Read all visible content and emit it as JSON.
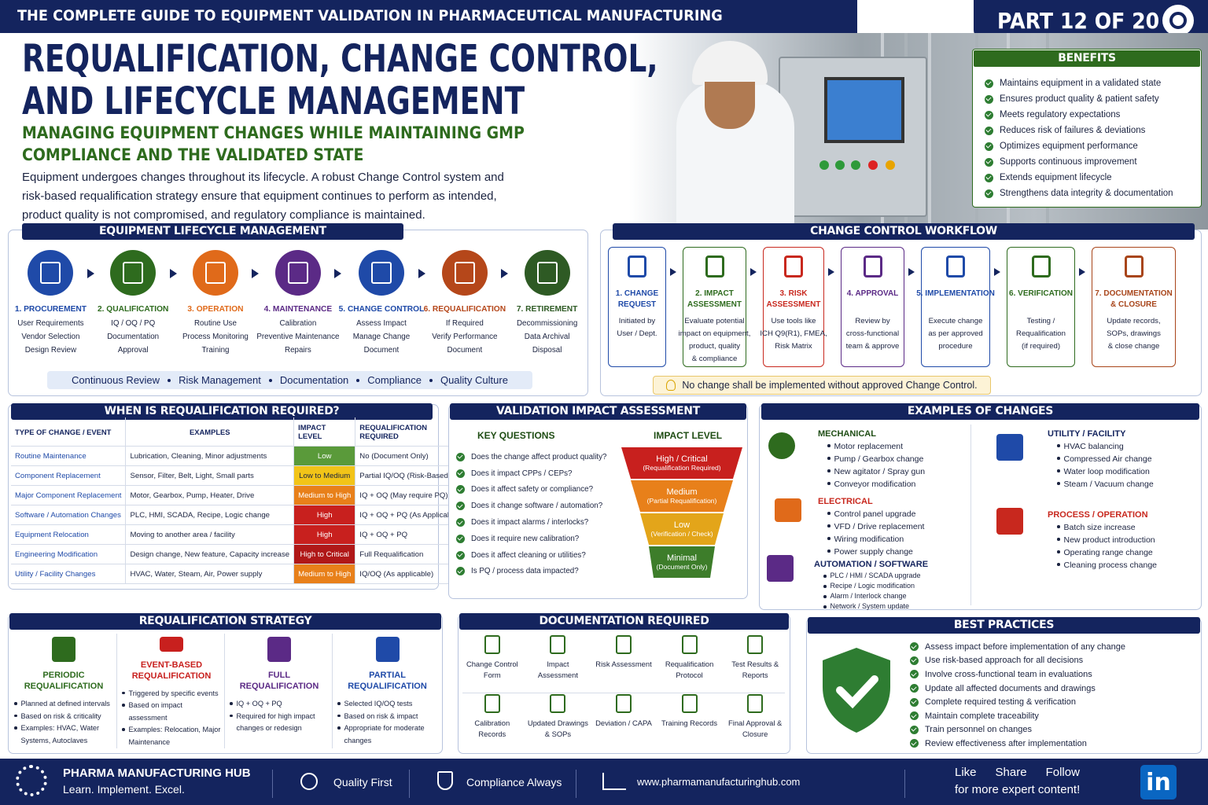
{
  "header": {
    "series": "THE COMPLETE GUIDE TO EQUIPMENT VALIDATION IN PHARMACEUTICAL MANUFACTURING",
    "part": "PART 12 OF 20",
    "title_lines": [
      "REQUALIFICATION, CHANGE CONTROL,",
      "AND LIFECYCLE MANAGEMENT"
    ],
    "subtitle_lines": [
      "MANAGING EQUIPMENT CHANGES WHILE MAINTAINING GMP",
      "COMPLIANCE AND THE VALIDATED STATE"
    ],
    "intro_lines": [
      "Equipment undergoes changes throughout its lifecycle. A robust Change Control system and",
      "risk-based requalification strategy ensure that equipment continues to perform as intended,",
      "product quality is not compromised, and regulatory compliance is maintained."
    ]
  },
  "benefits": {
    "title": "BENEFITS",
    "items": [
      "Maintains equipment in a validated state",
      "Ensures product quality & patient safety",
      "Meets regulatory expectations",
      "Reduces risk of failures & deviations",
      "Optimizes equipment performance",
      "Supports continuous improvement",
      "Extends equipment lifecycle",
      "Strengthens data integrity & documentation"
    ]
  },
  "lifecycle": {
    "title": "EQUIPMENT LIFECYCLE MANAGEMENT",
    "stages": [
      {
        "label": "1. PROCUREMENT",
        "lines": [
          "User Requirements",
          "Vendor Selection",
          "Design Review"
        ]
      },
      {
        "label": "2. QUALIFICATION",
        "lines": [
          "IQ / OQ / PQ",
          "Documentation",
          "Approval"
        ]
      },
      {
        "label": "3. OPERATION",
        "lines": [
          "Routine Use",
          "Process Monitoring",
          "Training"
        ]
      },
      {
        "label": "4. MAINTENANCE",
        "lines": [
          "Calibration",
          "Preventive Maintenance",
          "Repairs"
        ]
      },
      {
        "label": "5. CHANGE CONTROL",
        "lines": [
          "Assess Impact",
          "Manage Change",
          "Document"
        ]
      },
      {
        "label": "6. REQUALIFICATION",
        "lines": [
          "If Required",
          "Verify Performance",
          "Document"
        ]
      },
      {
        "label": "7. RETIREMENT",
        "lines": [
          "Decommissioning",
          "Data Archival",
          "Disposal"
        ]
      }
    ],
    "footer": [
      "Continuous Review",
      "Risk Management",
      "Documentation",
      "Compliance",
      "Quality Culture"
    ]
  },
  "workflow": {
    "title": "CHANGE CONTROL WORKFLOW",
    "steps": [
      {
        "label": [
          "1. CHANGE",
          "REQUEST"
        ],
        "lines": [
          "Initiated by",
          "User / Dept."
        ]
      },
      {
        "label": [
          "2. IMPACT",
          "ASSESSMENT"
        ],
        "lines": [
          "Evaluate potential",
          "impact on equipment,",
          "product, quality",
          "& compliance"
        ]
      },
      {
        "label": [
          "3. RISK",
          "ASSESSMENT"
        ],
        "lines": [
          "Use tools like",
          "ICH Q9(R1), FMEA,",
          "Risk Matrix"
        ]
      },
      {
        "label": [
          "4. APPROVAL"
        ],
        "lines": [
          "Review by",
          "cross-functional",
          "team & approve"
        ]
      },
      {
        "label": [
          "5. IMPLEMENTATION"
        ],
        "lines": [
          "Execute change",
          "as per approved",
          "procedure"
        ]
      },
      {
        "label": [
          "6. VERIFICATION"
        ],
        "lines": [
          "Testing /",
          "Requalification",
          "(if required)"
        ]
      },
      {
        "label": [
          "7. DOCUMENTATION",
          "& CLOSURE"
        ],
        "lines": [
          "Update records,",
          "SOPs, drawings",
          "& close change"
        ]
      }
    ],
    "note": "No change shall be implemented without approved Change Control."
  },
  "requalification_required": {
    "title": "WHEN IS REQUALIFICATION REQUIRED?",
    "headers": [
      "TYPE OF CHANGE / EVENT",
      "EXAMPLES",
      "IMPACT LEVEL",
      "REQUALIFICATION REQUIRED"
    ],
    "rows": [
      [
        "Routine Maintenance",
        "Lubrication, Cleaning, Minor adjustments",
        "Low",
        "No (Document Only)"
      ],
      [
        "Component Replacement",
        "Sensor, Filter, Belt, Light, Small parts",
        "Low to Medium",
        "Partial IQ/OQ (Risk-Based)"
      ],
      [
        "Major Component Replacement",
        "Motor, Gearbox, Pump, Heater, Drive",
        "Medium to High",
        "IQ + OQ (May require PQ)"
      ],
      [
        "Software / Automation Changes",
        "PLC, HMI, SCADA, Recipe, Logic change",
        "High",
        "IQ + OQ + PQ (As Applicable)"
      ],
      [
        "Equipment Relocation",
        "Moving to another area / facility",
        "High",
        "IQ + OQ + PQ"
      ],
      [
        "Engineering Modification",
        "Design change, New feature, Capacity increase",
        "High to Critical",
        "Full Requalification"
      ],
      [
        "Utility / Facility Changes",
        "HVAC, Water, Steam, Air, Power supply",
        "Medium to High",
        "IQ/OQ (As applicable)"
      ]
    ]
  },
  "impact_assessment": {
    "title": "VALIDATION IMPACT ASSESSMENT",
    "questions_title": "KEY QUESTIONS",
    "questions": [
      "Does the change affect product quality?",
      "Does it impact CPPs / CEPs?",
      "Does it affect safety or compliance?",
      "Does it change software / automation?",
      "Does it impact alarms / interlocks?",
      "Does it require new calibration?",
      "Does it affect cleaning or utilities?",
      "Is PQ / process data impacted?"
    ],
    "levels_title": "IMPACT LEVEL",
    "levels": [
      {
        "name": "High / Critical",
        "note": "(Requalification Required)"
      },
      {
        "name": "Medium",
        "note": "(Partial Requalification)"
      },
      {
        "name": "Low",
        "note": "(Verification / Check)"
      },
      {
        "name": "Minimal",
        "note": "(Document Only)"
      }
    ]
  },
  "examples": {
    "title": "EXAMPLES OF CHANGES",
    "groups": [
      {
        "name": "MECHANICAL",
        "items": [
          "Motor replacement",
          "Pump / Gearbox change",
          "New agitator / Spray gun",
          "Conveyor modification"
        ]
      },
      {
        "name": "ELECTRICAL",
        "items": [
          "Control panel upgrade",
          "VFD / Drive replacement",
          "Wiring modification",
          "Power supply change"
        ]
      },
      {
        "name": "AUTOMATION / SOFTWARE",
        "items": [
          "PLC / HMI / SCADA upgrade",
          "Recipe / Logic modification",
          "Alarm / Interlock change",
          "Network / System update"
        ]
      },
      {
        "name": "UTILITY / FACILITY",
        "items": [
          "HVAC balancing",
          "Compressed Air change",
          "Water loop modification",
          "Steam / Vacuum change"
        ]
      },
      {
        "name": "PROCESS / OPERATION",
        "items": [
          "Batch size increase",
          "New product introduction",
          "Operating range change",
          "Cleaning process change"
        ]
      }
    ]
  },
  "strategy": {
    "title": "REQUALIFICATION STRATEGY",
    "items": [
      {
        "name": [
          "PERIODIC",
          "REQUALIFICATION"
        ],
        "bullets": [
          "Planned at defined intervals",
          "Based on risk & criticality",
          "Examples: HVAC, Water Systems, Autoclaves"
        ]
      },
      {
        "name": [
          "EVENT-BASED",
          "REQUALIFICATION"
        ],
        "bullets": [
          "Triggered by specific events",
          "Based on impact assessment",
          "Examples: Relocation, Major Maintenance"
        ]
      },
      {
        "name": [
          "FULL",
          "REQUALIFICATION"
        ],
        "bullets": [
          "IQ + OQ + PQ",
          "Required for high impact changes or redesign"
        ]
      },
      {
        "name": [
          "PARTIAL",
          "REQUALIFICATION"
        ],
        "bullets": [
          "Selected IQ/OQ tests",
          "Based on risk & impact",
          "Appropriate for moderate changes"
        ]
      }
    ]
  },
  "documentation": {
    "title": "DOCUMENTATION REQUIRED",
    "items": [
      "Change Control Form",
      "Impact Assessment",
      "Risk Assessment",
      "Requalification Protocol",
      "Test Results & Reports",
      "Calibration Records",
      "Updated Drawings & SOPs",
      "Deviation / CAPA",
      "Training Records",
      "Final Approval & Closure"
    ]
  },
  "best_practices": {
    "title": "BEST PRACTICES",
    "items": [
      "Assess impact before implementation of any change",
      "Use risk-based approach for all decisions",
      "Involve cross-functional team in evaluations",
      "Update all affected documents and drawings",
      "Complete required testing & verification",
      "Maintain complete traceability",
      "Train personnel on changes",
      "Review effectiveness after implementation"
    ]
  },
  "footer": {
    "brand": "PHARMA MANUFACTURING HUB",
    "tagline": "Learn. Implement. Excel.",
    "quality": "Quality First",
    "compliance": "Compliance Always",
    "url": "www.pharmamanufacturinghub.com",
    "cta_actions": [
      "Like",
      "Share",
      "Follow"
    ],
    "cta_text": "for more expert content!",
    "linkedin": "in"
  }
}
